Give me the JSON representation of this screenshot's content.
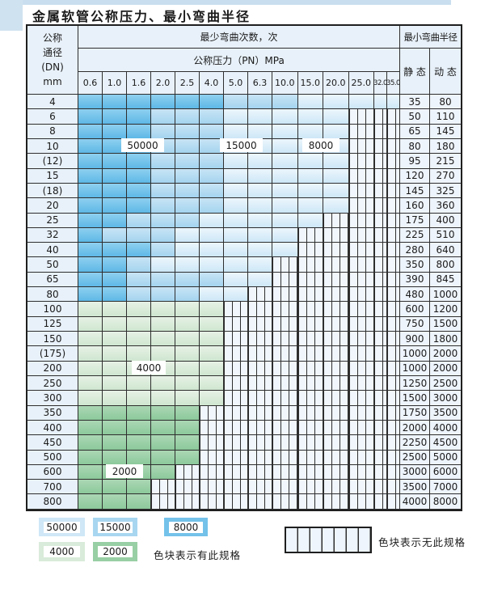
{
  "title": "金属软管公称压力、最小弯曲半径",
  "table": {
    "headers": {
      "dn_lines": [
        "公称",
        "通径",
        "(DN)",
        "mm"
      ],
      "bend_cycles": "最少弯曲次数，次",
      "pressure": "公称压力（PN）MPa",
      "bend_radius": "最小弯曲半径",
      "static": "静 态",
      "dynamic": "动 态",
      "pressure_values": [
        "0.6",
        "1.0",
        "1.6",
        "2.0",
        "2.5",
        "4.0",
        "5.0",
        "6.3",
        "10.0",
        "15.0",
        "20.0",
        "25.0",
        "32.0",
        "35.0"
      ]
    },
    "rows": [
      {
        "dn": "4",
        "cycles": {
          "50000": 5,
          "15000": 3,
          "8000": 6
        },
        "static": "35",
        "dynamic": "80"
      },
      {
        "dn": "6",
        "cycles": {
          "50000": 5,
          "15000": 3,
          "8000": 3
        },
        "static": "50",
        "dynamic": "110"
      },
      {
        "dn": "8",
        "cycles": {
          "50000": 5,
          "15000": 3,
          "8000": 3
        },
        "static": "65",
        "dynamic": "145"
      },
      {
        "dn": "10",
        "cycles": {
          "50000": 5,
          "15000": 3,
          "8000": 3
        },
        "static": "80",
        "dynamic": "180"
      },
      {
        "dn": "(12)",
        "cycles": {
          "50000": 5,
          "15000": 3,
          "8000": 3
        },
        "static": "95",
        "dynamic": "215"
      },
      {
        "dn": "15",
        "cycles": {
          "50000": 5,
          "15000": 3,
          "8000": 3
        },
        "static": "120",
        "dynamic": "270"
      },
      {
        "dn": "(18)",
        "cycles": {
          "50000": 5,
          "15000": 3,
          "8000": 3
        },
        "static": "145",
        "dynamic": "325"
      },
      {
        "dn": "20",
        "cycles": {
          "50000": 5,
          "15000": 3,
          "8000": 3
        },
        "static": "160",
        "dynamic": "360"
      },
      {
        "dn": "25",
        "cycles": {
          "50000": 5,
          "15000": 3,
          "8000": 2
        },
        "static": "175",
        "dynamic": "400"
      },
      {
        "dn": "32",
        "cycles": {
          "50000": 5,
          "15000": 3,
          "8000": 1
        },
        "static": "225",
        "dynamic": "510"
      },
      {
        "dn": "40",
        "cycles": {
          "50000": 5,
          "15000": 1,
          "8000": 3
        },
        "static": "280",
        "dynamic": "640"
      },
      {
        "dn": "50",
        "cycles": {
          "50000": 5,
          "15000": 1,
          "8000": 2
        },
        "static": "350",
        "dynamic": "800"
      },
      {
        "dn": "65",
        "cycles": {
          "50000": 2,
          "15000": 4,
          "8000": 2
        },
        "static": "390",
        "dynamic": "845"
      },
      {
        "dn": "80",
        "cycles": {
          "50000": 2,
          "15000": 3,
          "8000": 2
        },
        "static": "480",
        "dynamic": "1000"
      },
      {
        "dn": "100",
        "cycles": {
          "4000": 6
        },
        "static": "600",
        "dynamic": "1200"
      },
      {
        "dn": "125",
        "cycles": {
          "4000": 6
        },
        "static": "750",
        "dynamic": "1500"
      },
      {
        "dn": "150",
        "cycles": {
          "4000": 6
        },
        "static": "900",
        "dynamic": "1800"
      },
      {
        "dn": "(175)",
        "cycles": {
          "4000": 6
        },
        "static": "1000",
        "dynamic": "2000"
      },
      {
        "dn": "200",
        "cycles": {
          "4000": 6
        },
        "static": "1000",
        "dynamic": "2000"
      },
      {
        "dn": "250",
        "cycles": {
          "4000": 6
        },
        "static": "1250",
        "dynamic": "2500"
      },
      {
        "dn": "300",
        "cycles": {
          "4000": 6
        },
        "static": "1500",
        "dynamic": "3000"
      },
      {
        "dn": "350",
        "cycles": {
          "2000": 5
        },
        "static": "1750",
        "dynamic": "3500"
      },
      {
        "dn": "400",
        "cycles": {
          "2000": 5
        },
        "static": "2000",
        "dynamic": "4000"
      },
      {
        "dn": "450",
        "cycles": {
          "2000": 5
        },
        "static": "2250",
        "dynamic": "4500"
      },
      {
        "dn": "500",
        "cycles": {
          "2000": 5
        },
        "static": "2500",
        "dynamic": "5000"
      },
      {
        "dn": "600",
        "cycles": {
          "2000": 4
        },
        "static": "3000",
        "dynamic": "6000"
      },
      {
        "dn": "700",
        "cycles": {
          "2000": 3
        },
        "static": "3500",
        "dynamic": "7000"
      },
      {
        "dn": "800",
        "cycles": {
          "2000": 3
        },
        "static": "4000",
        "dynamic": "8000"
      }
    ]
  },
  "overlay_labels": {
    "l50000": "50000",
    "l15000": "15000",
    "l8000": "8000",
    "l4000": "4000",
    "l2000": "2000"
  },
  "legend": {
    "items": [
      {
        "label": "50000",
        "color": "#cfe7f7"
      },
      {
        "label": "15000",
        "color": "#a8d6f0"
      },
      {
        "label": "8000",
        "color": "#74c2ea"
      },
      {
        "label": "4000",
        "color": "#d9ebda"
      },
      {
        "label": "2000",
        "color": "#98cfa4"
      }
    ],
    "has_spec_text": "色块表示有此规格",
    "no_spec_text": "色块表示无此规格"
  },
  "colors": {
    "cycles_50000": "#cfe7f7",
    "cycles_15000": "#a8d6f0",
    "cycles_8000": "#74c2ea",
    "cycles_4000": "#d9ebda",
    "cycles_2000": "#98cfa4",
    "header_bg": "#e8f1f9",
    "grid_line": "#2e2e2e"
  }
}
